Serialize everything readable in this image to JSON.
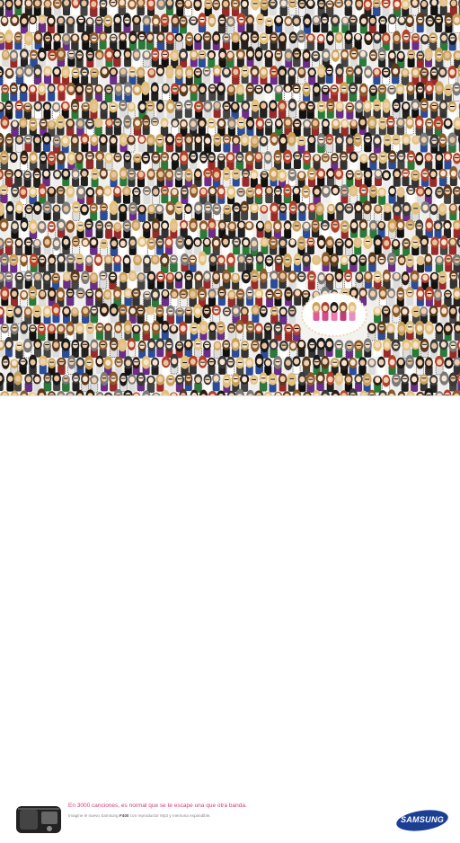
{
  "ad": {
    "headline": "En 3000 canciones, es normal que se te escape una que otra banda.",
    "subline_before": "Imagine el nuevo Samsung ",
    "subline_model": "F400",
    "subline_after": " con reproductor Mp3 y memoria expandible.",
    "brand": "SAMSUNG"
  },
  "colors": {
    "headline": "#d63b76",
    "brand_blue": "#1c3f94",
    "crowd_background": "#f4f2ee"
  },
  "crowd": {
    "description_icon": "cartoon-rock-crowd-illustration"
  }
}
